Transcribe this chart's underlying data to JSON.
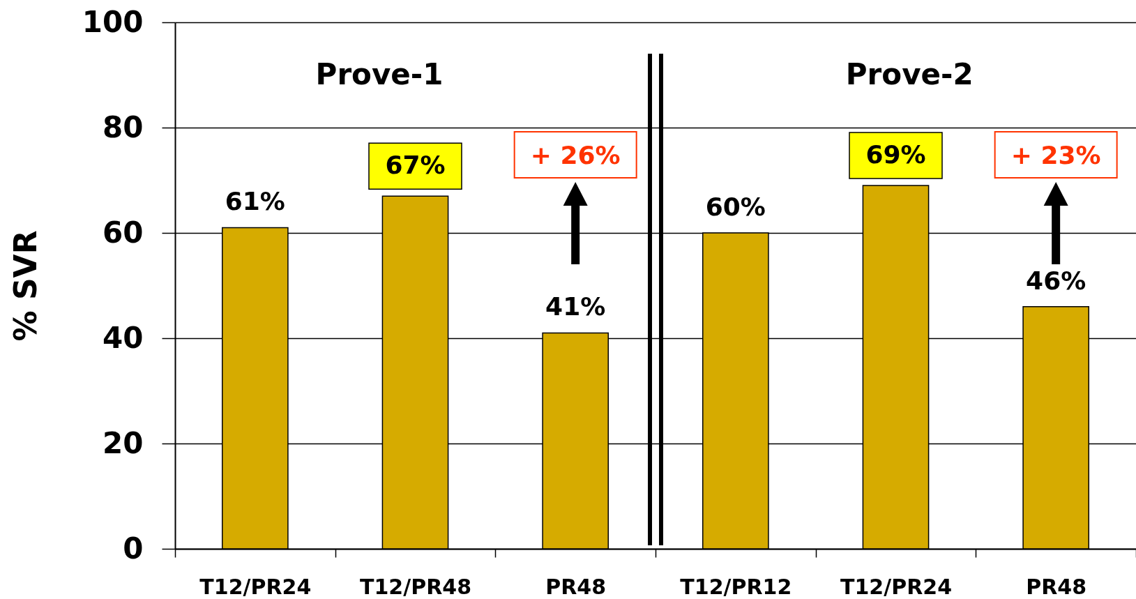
{
  "chart_data": {
    "type": "bar",
    "ylabel": "% SVR",
    "categories": [
      "T12/PR24",
      "T12/PR48",
      "PR48",
      "T12/PR12",
      "T12/PR24",
      "PR48"
    ],
    "values": [
      61,
      67,
      41,
      60,
      69,
      46
    ],
    "value_labels": [
      "61%",
      "67%",
      "41%",
      "60%",
      "69%",
      "46%"
    ],
    "color": "#d6ab00",
    "ylim": [
      0,
      100
    ],
    "yticks": [
      0,
      20,
      40,
      60,
      80,
      100
    ],
    "grid": "y",
    "annotations": [
      "Prove-1",
      "Prove-2",
      "+ 26%",
      "+ 23%"
    ]
  }
}
